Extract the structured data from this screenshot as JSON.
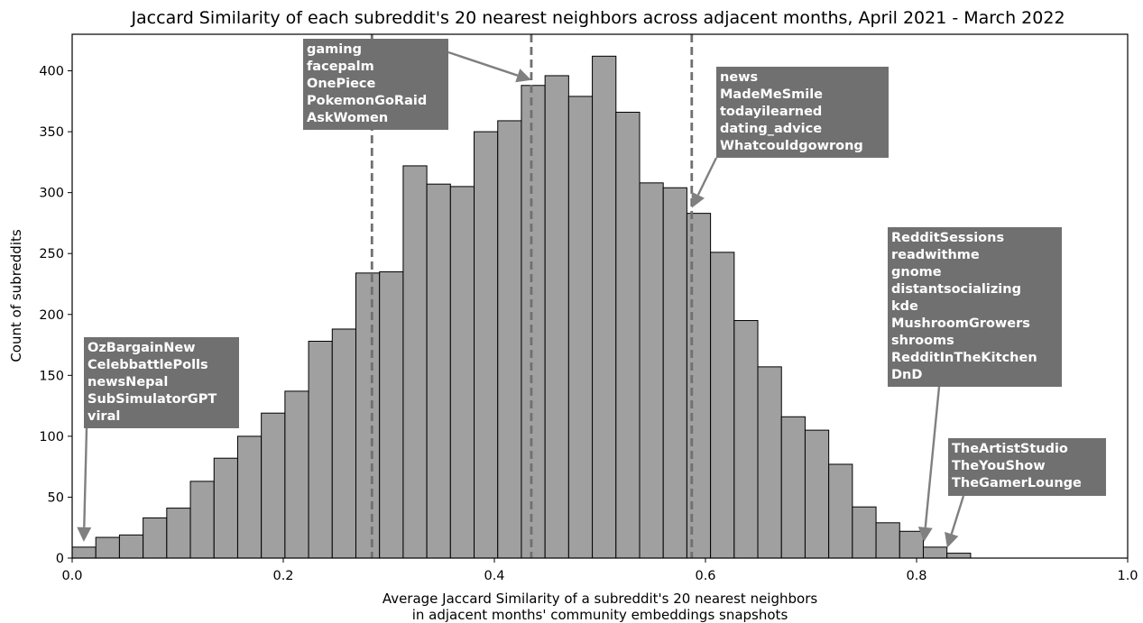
{
  "chart_data": {
    "type": "bar",
    "title": "Jaccard Similarity of each subreddit's 20 nearest neighbors across adjacent months, April 2021 - March 2022",
    "xlabel_lines": [
      "Average Jaccard Similarity of a subreddit's 20 nearest neighbors",
      "in adjacent months' community embeddings snapshots"
    ],
    "ylabel": "Count of subreddits",
    "xlim": [
      0.0,
      1.0
    ],
    "ylim": [
      0,
      430
    ],
    "x_ticks": [
      "0.0",
      "0.2",
      "0.4",
      "0.6",
      "0.8",
      "1.0"
    ],
    "y_ticks": [
      "0",
      "50",
      "100",
      "150",
      "200",
      "250",
      "300",
      "350",
      "400"
    ],
    "bin_edges": [
      0.0,
      0.0224,
      0.0448,
      0.0672,
      0.0896,
      0.112,
      0.1344,
      0.1568,
      0.1792,
      0.2016,
      0.224,
      0.2464,
      0.2688,
      0.2912,
      0.3136,
      0.336,
      0.3584,
      0.3808,
      0.4032,
      0.4256,
      0.448,
      0.4704,
      0.4928,
      0.5152,
      0.5376,
      0.56,
      0.5824,
      0.6048,
      0.6272,
      0.6496,
      0.672,
      0.6944,
      0.7168,
      0.7392,
      0.7616,
      0.784,
      0.8064,
      0.8288,
      0.8512
    ],
    "values": [
      9,
      17,
      19,
      33,
      41,
      63,
      82,
      100,
      119,
      137,
      178,
      188,
      234,
      235,
      322,
      307,
      305,
      350,
      359,
      388,
      396,
      379,
      412,
      366,
      308,
      304,
      283,
      251,
      195,
      157,
      116,
      105,
      77,
      42,
      29,
      22,
      9,
      4
    ],
    "bar_color": "#a0a0a0",
    "edge_color": "#000000",
    "vlines": [
      0.284,
      0.435,
      0.587
    ],
    "vline_color": "#707070",
    "grid": false,
    "annotations": [
      {
        "lines": [
          "OzBargainNew",
          "CelebbattlePolls",
          "newsNepal",
          "SubSimulatorGPT",
          "viral"
        ],
        "x": 0.011,
        "y": 9
      },
      {
        "lines": [
          "gaming",
          "facepalm",
          "OnePiece",
          "PokemonGoRaid",
          "AskWomen"
        ],
        "x": 0.435,
        "y": 388
      },
      {
        "lines": [
          "news",
          "MadeMeSmile",
          "todayilearned",
          "dating_advice",
          "Whatcouldgowrong"
        ],
        "x": 0.587,
        "y": 283
      },
      {
        "lines": [
          "RedditSessions",
          "readwithme",
          "gnome",
          "distantsocializing",
          "kde",
          "MushroomGrowers",
          "shrooms",
          "RedditInTheKitchen",
          "DnD"
        ],
        "x": 0.807,
        "y": 9
      },
      {
        "lines": [
          "TheArtistStudio",
          "TheYouShow",
          "TheGamerLounge"
        ],
        "x": 0.829,
        "y": 4
      }
    ],
    "annotation_box_color": "#707070",
    "arrow_color": "#808080"
  }
}
